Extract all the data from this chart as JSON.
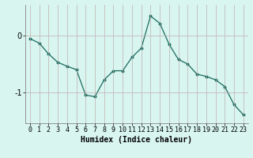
{
  "x": [
    0,
    1,
    2,
    3,
    4,
    5,
    6,
    7,
    8,
    9,
    10,
    11,
    12,
    13,
    14,
    15,
    16,
    17,
    18,
    19,
    20,
    21,
    22,
    23
  ],
  "y": [
    -0.05,
    -0.13,
    -0.32,
    -0.47,
    -0.54,
    -0.6,
    -1.05,
    -1.08,
    -0.78,
    -0.62,
    -0.62,
    -0.38,
    -0.22,
    0.35,
    0.22,
    -0.15,
    -0.42,
    -0.5,
    -0.68,
    -0.72,
    -0.78,
    -0.9,
    -1.22,
    -1.4
  ],
  "line_color": "#1a6b5e",
  "marker": "o",
  "marker_size": 1.8,
  "bg_color": "#d8f5f0",
  "grid_color": "#c0b0b0",
  "xlabel": "Humidex (Indice chaleur)",
  "yticks": [
    0,
    -1
  ],
  "ytick_labels": [
    "0",
    "-1"
  ],
  "xlim": [
    -0.5,
    23.5
  ],
  "ylim": [
    -1.55,
    0.55
  ],
  "xlabel_fontsize": 7,
  "tick_fontsize": 6
}
